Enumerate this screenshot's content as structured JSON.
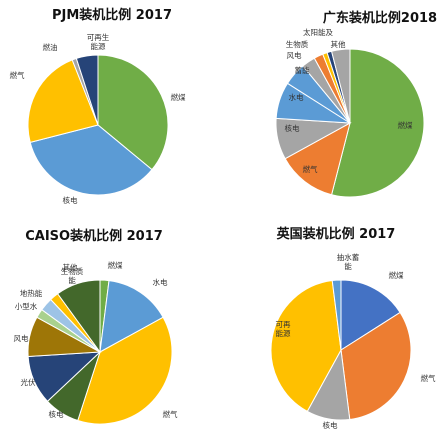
{
  "chart_data": [
    {
      "type": "pie",
      "title": "PJM装机比例 2017",
      "slice_colors": [
        "#70AD47",
        "#5B9BD5",
        "#FFC000",
        "#A5A5A5",
        "#264478"
      ],
      "slices": [
        {
          "label": "燃煤",
          "value": 36
        },
        {
          "label": "核电",
          "value": 35
        },
        {
          "label": "燃气",
          "value": 23
        },
        {
          "label": "燃油",
          "value": 1
        },
        {
          "label": "可再生能源",
          "value": 5
        }
      ]
    },
    {
      "type": "pie",
      "title": "广东装机比例2018",
      "slice_colors": [
        "#70AD47",
        "#ED7D31",
        "#A5A5A5",
        "#5B9BD5",
        "#5B9BD5",
        "#A5A5A5",
        "#ED7D31",
        "#FFC000",
        "#264478",
        "#A5A5A5"
      ],
      "slices": [
        {
          "label": "燃煤",
          "value": 54
        },
        {
          "label": "燃气",
          "value": 13
        },
        {
          "label": "核电",
          "value": 9
        },
        {
          "label": "水电",
          "value": 8
        },
        {
          "label": "蓄能",
          "value": 5
        },
        {
          "label": "风电",
          "value": 3
        },
        {
          "label": "生物质",
          "value": 2
        },
        {
          "label": "太阳能",
          "value": 1
        },
        {
          "label": "及",
          "value": 1
        },
        {
          "label": "其他",
          "value": 4
        }
      ]
    },
    {
      "type": "pie",
      "title": "CAISO装机比例 2017",
      "slice_colors": [
        "#70AD47",
        "#5B9BD5",
        "#FFC000",
        "#43682B",
        "#264478",
        "#9E7607",
        "#A9D18E",
        "#9DC3E6",
        "#FFC000",
        "#43682B"
      ],
      "slices": [
        {
          "label": "燃煤",
          "value": 2
        },
        {
          "label": "水电",
          "value": 15
        },
        {
          "label": "燃气",
          "value": 38
        },
        {
          "label": "核电",
          "value": 8
        },
        {
          "label": "光伏",
          "value": 11
        },
        {
          "label": "风电",
          "value": 9
        },
        {
          "label": "小型水",
          "value": 2
        },
        {
          "label": "地热能",
          "value": 3
        },
        {
          "label": "生物质能",
          "value": 2
        },
        {
          "label": "其他",
          "value": 10
        }
      ]
    },
    {
      "type": "pie",
      "title": "英国装机比例 2017",
      "slice_colors": [
        "#4472C4",
        "#ED7D31",
        "#A5A5A5",
        "#FFC000",
        "#5B9BD5"
      ],
      "slices": [
        {
          "label": "燃煤",
          "value": 16
        },
        {
          "label": "燃气",
          "value": 32
        },
        {
          "label": "核电",
          "value": 10
        },
        {
          "label": "可再能源",
          "value": 40
        },
        {
          "label": "抽水蓄能",
          "value": 2
        }
      ]
    }
  ]
}
